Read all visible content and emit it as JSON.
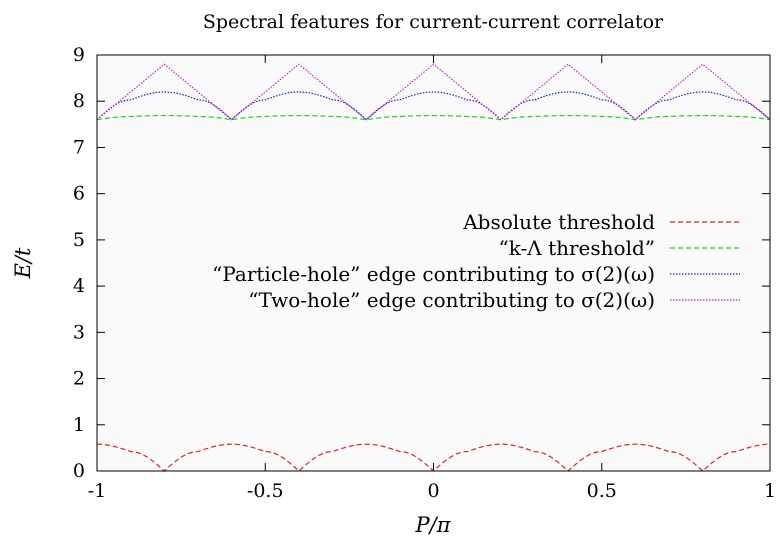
{
  "chart_data": {
    "type": "line",
    "title": "Spectral features for current-current correlator",
    "xlabel": "P/π",
    "ylabel": "E/t",
    "xlim": [
      -1,
      1
    ],
    "ylim": [
      0,
      9
    ],
    "xticks": [
      "-1",
      "-0.5",
      "0",
      "0.5",
      "1"
    ],
    "yticks": [
      "0",
      "1",
      "2",
      "3",
      "4",
      "5",
      "6",
      "7",
      "8",
      "9"
    ],
    "grid": false,
    "legend_position": "right",
    "series": [
      {
        "name": "Absolute threshold",
        "color": "#e0201f",
        "dash": "dashed",
        "x": [
          -1,
          -0.9,
          -0.8,
          -0.7,
          -0.6,
          -0.5,
          -0.4,
          -0.3,
          -0.2,
          -0.1,
          0,
          0.1,
          0.2,
          0.3,
          0.4,
          0.5,
          0.6,
          0.7,
          0.8,
          0.9,
          1
        ],
        "y": [
          0.58,
          0.42,
          0,
          0.42,
          0.58,
          0.42,
          0,
          0.42,
          0.58,
          0.42,
          0,
          0.42,
          0.58,
          0.42,
          0,
          0.42,
          0.58,
          0.42,
          0,
          0.42,
          0.58
        ]
      },
      {
        "name": "“k-Λ threshold”",
        "color": "#22cc22",
        "dash": "dashed",
        "x": [
          -1,
          -0.9,
          -0.8,
          -0.7,
          -0.6,
          -0.5,
          -0.4,
          -0.3,
          -0.2,
          -0.1,
          0,
          0.1,
          0.2,
          0.3,
          0.4,
          0.5,
          0.6,
          0.7,
          0.8,
          0.9,
          1
        ],
        "y": [
          7.6,
          7.67,
          7.69,
          7.67,
          7.6,
          7.67,
          7.69,
          7.67,
          7.6,
          7.67,
          7.69,
          7.67,
          7.6,
          7.67,
          7.69,
          7.67,
          7.6,
          7.67,
          7.69,
          7.67,
          7.6
        ]
      },
      {
        "name": "“Particle-hole” edge contributing to σ(2)(ω)",
        "color": "#2020cc",
        "dash": "dotted",
        "x": [
          -1,
          -0.9,
          -0.8,
          -0.7,
          -0.6,
          -0.5,
          -0.4,
          -0.3,
          -0.2,
          -0.1,
          0,
          0.1,
          0.2,
          0.3,
          0.4,
          0.5,
          0.6,
          0.7,
          0.8,
          0.9,
          1
        ],
        "y": [
          7.6,
          8.03,
          8.2,
          8.03,
          7.6,
          8.03,
          8.2,
          8.03,
          7.6,
          8.03,
          8.2,
          8.03,
          7.6,
          8.03,
          8.2,
          8.03,
          7.6,
          8.03,
          8.2,
          8.03,
          7.6
        ]
      },
      {
        "name": "“Two-hole” edge contributing to σ(2)(ω)",
        "color": "#cc22cc",
        "dash": "dotted",
        "x": [
          -1,
          -0.8,
          -0.6,
          -0.4,
          -0.2,
          0,
          0.2,
          0.4,
          0.6,
          0.8,
          1
        ],
        "y": [
          7.6,
          8.8,
          7.6,
          8.8,
          7.6,
          8.8,
          7.6,
          8.8,
          7.6,
          8.8,
          7.6
        ]
      }
    ]
  }
}
